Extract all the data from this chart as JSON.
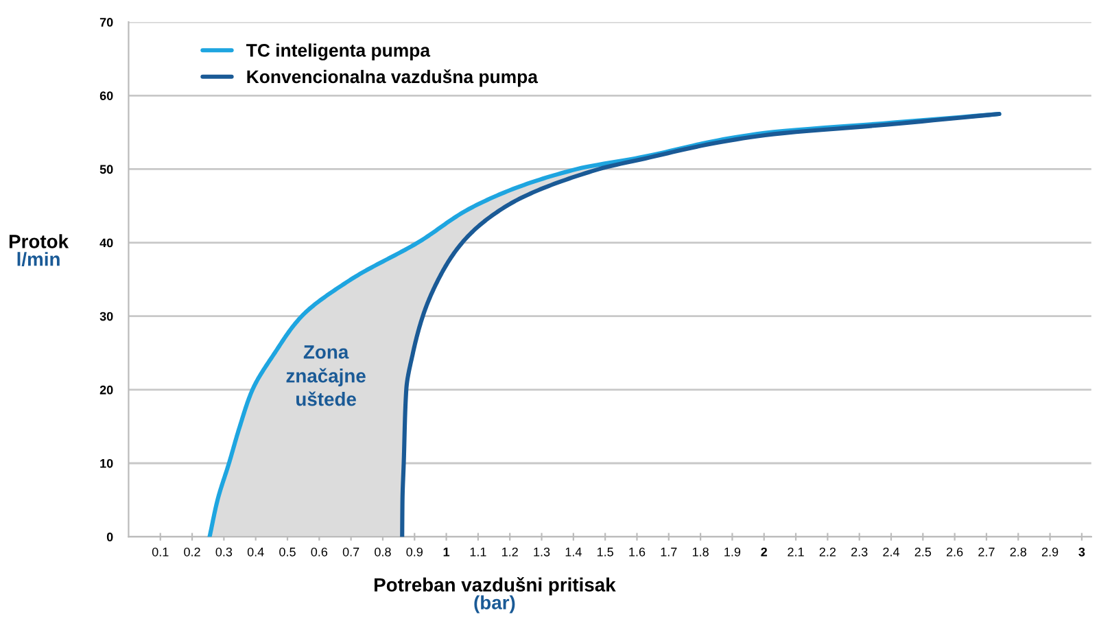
{
  "chart_data": {
    "type": "line",
    "xlabel": "Potreban vazdušni pritisak\n(bar)",
    "ylabel": "Protok\nl/min",
    "series": [
      {
        "name": "TC inteligenta pumpa",
        "color": "#1ea5e0",
        "x": [
          0.255,
          0.28,
          0.316,
          0.35,
          0.39,
          0.46,
          0.545,
          0.7,
          0.91,
          1.09,
          1.41,
          1.6,
          2.0,
          2.4,
          2.74
        ],
        "values": [
          0,
          5,
          10,
          15,
          20,
          25,
          30,
          35,
          40,
          45,
          50,
          51.5,
          54.9,
          56.3,
          57.5
        ]
      },
      {
        "name": "Konvencionalna vazdušna pumpa",
        "color": "#1a5a96",
        "x": [
          0.861,
          0.862,
          0.866,
          0.874,
          0.895,
          0.926,
          0.975,
          1.05,
          1.19,
          1.48,
          1.6,
          2.0,
          2.4,
          2.74
        ],
        "values": [
          0,
          5,
          10,
          20,
          25,
          30,
          35,
          40,
          45,
          50,
          51.2,
          54.6,
          56.1,
          57.5
        ]
      }
    ],
    "annotations": [
      "Zona\nznačajne\nuštede"
    ],
    "xlim": [
      0,
      3.03
    ],
    "xticks": [
      0.1,
      0.2,
      0.3,
      0.4,
      0.5,
      0.6,
      0.7,
      0.8,
      0.9,
      1,
      1.1,
      1.2,
      1.3,
      1.4,
      1.5,
      1.6,
      1.7,
      1.8,
      1.9,
      2,
      2.1,
      2.2,
      2.3,
      2.4,
      2.5,
      2.6,
      2.7,
      2.8,
      2.9,
      3
    ],
    "ylim": [
      0,
      70
    ],
    "yticks": [
      0,
      10,
      20,
      30,
      40,
      50,
      60,
      70
    ],
    "grid": "y",
    "legend": "top left",
    "marker": "none",
    "line_style": "solid"
  }
}
